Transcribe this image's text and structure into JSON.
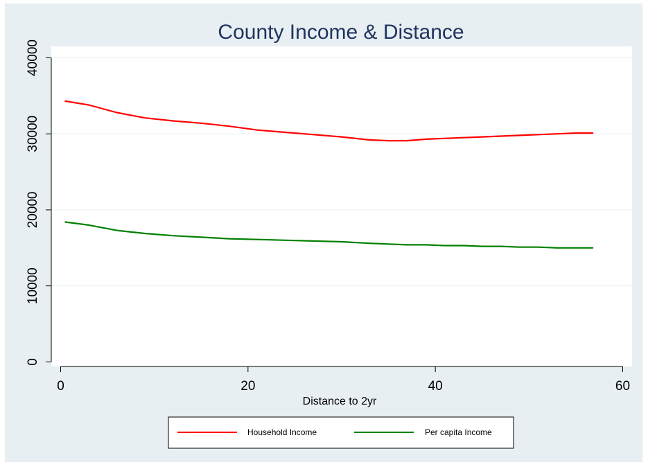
{
  "chart_data": {
    "type": "line",
    "title": "County Income & Distance",
    "xlabel": "Distance to 2yr",
    "ylabel": "",
    "xlim": [
      -1,
      61
    ],
    "ylim": [
      -600,
      41500
    ],
    "x_ticks": [
      0,
      20,
      40,
      60
    ],
    "x_tick_labels": [
      "0",
      "20",
      "40",
      "60"
    ],
    "y_ticks": [
      0,
      10000,
      20000,
      30000,
      40000
    ],
    "y_tick_labels": [
      "0",
      "10000",
      "20000",
      "30000",
      "40000"
    ],
    "grid": "horizontal",
    "legend_position": "bottom",
    "colors": {
      "background": "#e8eff2",
      "plot_background": "#ffffff",
      "grid": "#e8eff2",
      "title": "#1f3560",
      "axis": "#000000"
    },
    "series": [
      {
        "name": "Household Income",
        "color": "#ff0000",
        "x": [
          0.5,
          3,
          6,
          9,
          12,
          15,
          18,
          21,
          24,
          27,
          30,
          33,
          35,
          37,
          39,
          41,
          43,
          45,
          47,
          49,
          51,
          53,
          55,
          56.8
        ],
        "y": [
          34300,
          33800,
          32800,
          32100,
          31700,
          31400,
          31000,
          30500,
          30200,
          29900,
          29600,
          29200,
          29100,
          29100,
          29300,
          29400,
          29500,
          29600,
          29700,
          29800,
          29900,
          30000,
          30100,
          30100
        ]
      },
      {
        "name": "Per capita Income",
        "color": "#008000",
        "x": [
          0.5,
          3,
          6,
          9,
          12,
          15,
          18,
          21,
          24,
          27,
          30,
          33,
          35,
          37,
          39,
          41,
          43,
          45,
          47,
          49,
          51,
          53,
          55,
          56.8
        ],
        "y": [
          18400,
          18000,
          17300,
          16900,
          16600,
          16400,
          16200,
          16100,
          16000,
          15900,
          15800,
          15600,
          15500,
          15400,
          15400,
          15300,
          15300,
          15200,
          15200,
          15100,
          15100,
          15000,
          15000,
          15000
        ]
      }
    ]
  }
}
